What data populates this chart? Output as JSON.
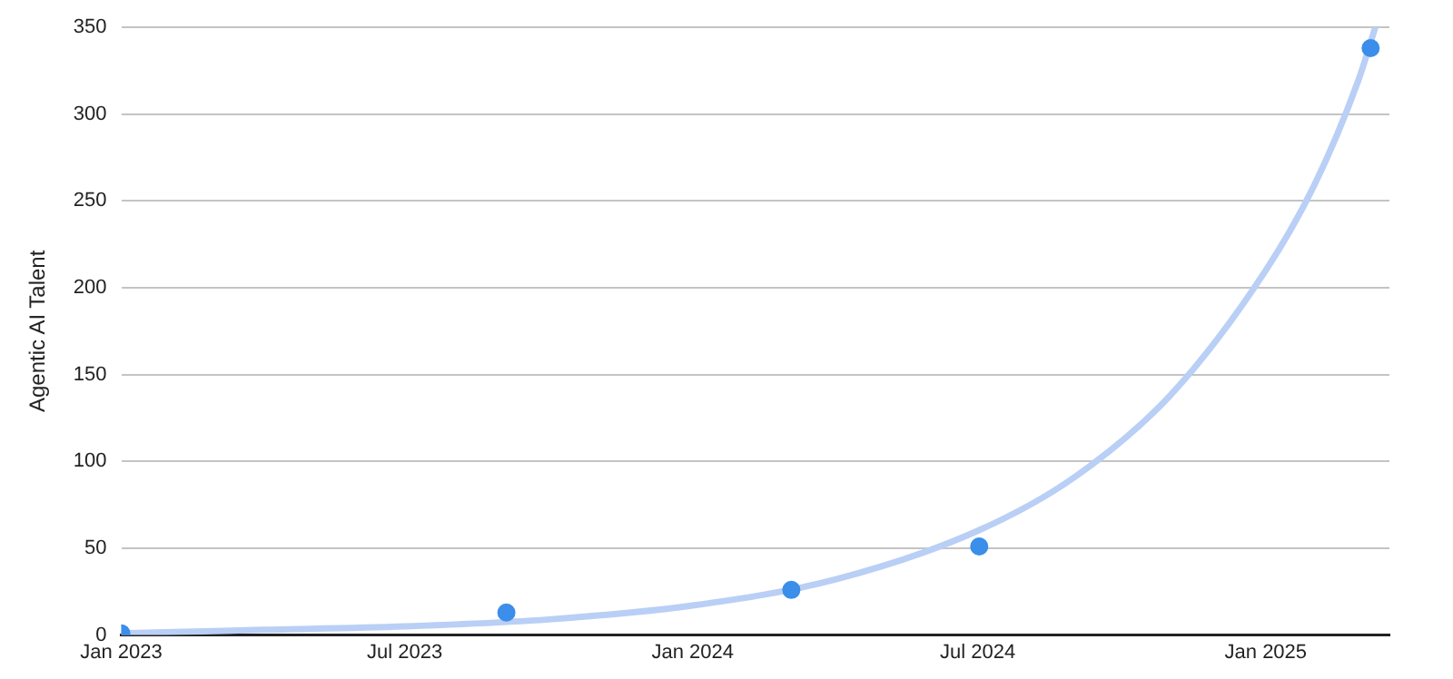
{
  "chart_data": {
    "type": "scatter",
    "ylabel": "Agentic AI Talent",
    "xlim": [
      "2023-01-01",
      "2025-03-21"
    ],
    "ylim": [
      0,
      350
    ],
    "xticks": [
      {
        "value": "2023-01-01",
        "label": "Jan 2023"
      },
      {
        "value": "2023-07-01",
        "label": "Jul 2023"
      },
      {
        "value": "2024-01-01",
        "label": "Jan 2024"
      },
      {
        "value": "2024-07-01",
        "label": "Jul 2024"
      },
      {
        "value": "2025-01-01",
        "label": "Jan 2025"
      }
    ],
    "yticks": [
      0,
      50,
      100,
      150,
      200,
      250,
      300,
      350
    ],
    "grid": "y",
    "legend": false,
    "series": [
      {
        "type": "line",
        "color": "#b9cff5",
        "line_style": "solid",
        "marker": "none",
        "x": [
          "2023-01-01",
          "2023-04-01",
          "2023-07-01",
          "2023-10-01",
          "2024-01-01",
          "2024-04-01",
          "2024-07-01",
          "2024-09-01",
          "2024-11-01",
          "2025-01-01",
          "2025-02-01",
          "2025-03-01",
          "2025-03-12"
        ],
        "values": [
          1,
          3,
          5,
          9,
          17,
          32,
          60,
          91,
          138,
          210,
          259,
          319,
          350
        ]
      },
      {
        "color": "#3b8eea",
        "marker": "circle",
        "x": [
          "2023-01-01",
          "2023-09-04",
          "2024-03-04",
          "2024-07-02",
          "2025-03-09"
        ],
        "values": [
          1,
          13,
          26,
          51,
          338
        ]
      }
    ]
  }
}
